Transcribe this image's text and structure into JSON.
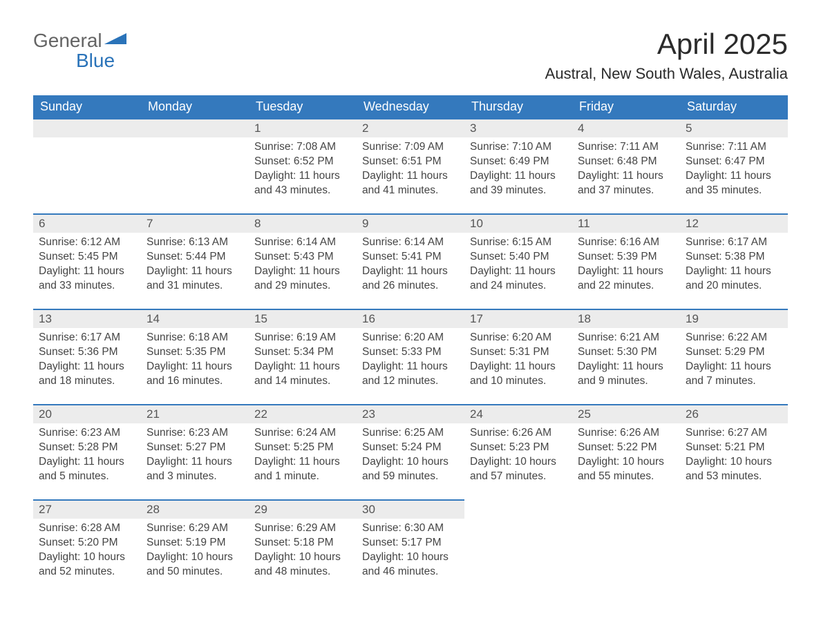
{
  "logo": {
    "line1": "General",
    "line2": "Blue",
    "accent_color": "#2a73b9",
    "text_color": "#646464"
  },
  "header": {
    "month_title": "April 2025",
    "location": "Austral, New South Wales, Australia"
  },
  "colors": {
    "header_bg": "#3479bd",
    "header_text": "#ffffff",
    "daynum_bg": "#ececec",
    "daynum_border": "#3479bd",
    "body_text": "#444444",
    "page_bg": "#ffffff"
  },
  "weekdays": [
    "Sunday",
    "Monday",
    "Tuesday",
    "Wednesday",
    "Thursday",
    "Friday",
    "Saturday"
  ],
  "weeks": [
    [
      null,
      null,
      {
        "n": "1",
        "sr": "Sunrise: 7:08 AM",
        "ss": "Sunset: 6:52 PM",
        "dl": "Daylight: 11 hours and 43 minutes."
      },
      {
        "n": "2",
        "sr": "Sunrise: 7:09 AM",
        "ss": "Sunset: 6:51 PM",
        "dl": "Daylight: 11 hours and 41 minutes."
      },
      {
        "n": "3",
        "sr": "Sunrise: 7:10 AM",
        "ss": "Sunset: 6:49 PM",
        "dl": "Daylight: 11 hours and 39 minutes."
      },
      {
        "n": "4",
        "sr": "Sunrise: 7:11 AM",
        "ss": "Sunset: 6:48 PM",
        "dl": "Daylight: 11 hours and 37 minutes."
      },
      {
        "n": "5",
        "sr": "Sunrise: 7:11 AM",
        "ss": "Sunset: 6:47 PM",
        "dl": "Daylight: 11 hours and 35 minutes."
      }
    ],
    [
      {
        "n": "6",
        "sr": "Sunrise: 6:12 AM",
        "ss": "Sunset: 5:45 PM",
        "dl": "Daylight: 11 hours and 33 minutes."
      },
      {
        "n": "7",
        "sr": "Sunrise: 6:13 AM",
        "ss": "Sunset: 5:44 PM",
        "dl": "Daylight: 11 hours and 31 minutes."
      },
      {
        "n": "8",
        "sr": "Sunrise: 6:14 AM",
        "ss": "Sunset: 5:43 PM",
        "dl": "Daylight: 11 hours and 29 minutes."
      },
      {
        "n": "9",
        "sr": "Sunrise: 6:14 AM",
        "ss": "Sunset: 5:41 PM",
        "dl": "Daylight: 11 hours and 26 minutes."
      },
      {
        "n": "10",
        "sr": "Sunrise: 6:15 AM",
        "ss": "Sunset: 5:40 PM",
        "dl": "Daylight: 11 hours and 24 minutes."
      },
      {
        "n": "11",
        "sr": "Sunrise: 6:16 AM",
        "ss": "Sunset: 5:39 PM",
        "dl": "Daylight: 11 hours and 22 minutes."
      },
      {
        "n": "12",
        "sr": "Sunrise: 6:17 AM",
        "ss": "Sunset: 5:38 PM",
        "dl": "Daylight: 11 hours and 20 minutes."
      }
    ],
    [
      {
        "n": "13",
        "sr": "Sunrise: 6:17 AM",
        "ss": "Sunset: 5:36 PM",
        "dl": "Daylight: 11 hours and 18 minutes."
      },
      {
        "n": "14",
        "sr": "Sunrise: 6:18 AM",
        "ss": "Sunset: 5:35 PM",
        "dl": "Daylight: 11 hours and 16 minutes."
      },
      {
        "n": "15",
        "sr": "Sunrise: 6:19 AM",
        "ss": "Sunset: 5:34 PM",
        "dl": "Daylight: 11 hours and 14 minutes."
      },
      {
        "n": "16",
        "sr": "Sunrise: 6:20 AM",
        "ss": "Sunset: 5:33 PM",
        "dl": "Daylight: 11 hours and 12 minutes."
      },
      {
        "n": "17",
        "sr": "Sunrise: 6:20 AM",
        "ss": "Sunset: 5:31 PM",
        "dl": "Daylight: 11 hours and 10 minutes."
      },
      {
        "n": "18",
        "sr": "Sunrise: 6:21 AM",
        "ss": "Sunset: 5:30 PM",
        "dl": "Daylight: 11 hours and 9 minutes."
      },
      {
        "n": "19",
        "sr": "Sunrise: 6:22 AM",
        "ss": "Sunset: 5:29 PM",
        "dl": "Daylight: 11 hours and 7 minutes."
      }
    ],
    [
      {
        "n": "20",
        "sr": "Sunrise: 6:23 AM",
        "ss": "Sunset: 5:28 PM",
        "dl": "Daylight: 11 hours and 5 minutes."
      },
      {
        "n": "21",
        "sr": "Sunrise: 6:23 AM",
        "ss": "Sunset: 5:27 PM",
        "dl": "Daylight: 11 hours and 3 minutes."
      },
      {
        "n": "22",
        "sr": "Sunrise: 6:24 AM",
        "ss": "Sunset: 5:25 PM",
        "dl": "Daylight: 11 hours and 1 minute."
      },
      {
        "n": "23",
        "sr": "Sunrise: 6:25 AM",
        "ss": "Sunset: 5:24 PM",
        "dl": "Daylight: 10 hours and 59 minutes."
      },
      {
        "n": "24",
        "sr": "Sunrise: 6:26 AM",
        "ss": "Sunset: 5:23 PM",
        "dl": "Daylight: 10 hours and 57 minutes."
      },
      {
        "n": "25",
        "sr": "Sunrise: 6:26 AM",
        "ss": "Sunset: 5:22 PM",
        "dl": "Daylight: 10 hours and 55 minutes."
      },
      {
        "n": "26",
        "sr": "Sunrise: 6:27 AM",
        "ss": "Sunset: 5:21 PM",
        "dl": "Daylight: 10 hours and 53 minutes."
      }
    ],
    [
      {
        "n": "27",
        "sr": "Sunrise: 6:28 AM",
        "ss": "Sunset: 5:20 PM",
        "dl": "Daylight: 10 hours and 52 minutes."
      },
      {
        "n": "28",
        "sr": "Sunrise: 6:29 AM",
        "ss": "Sunset: 5:19 PM",
        "dl": "Daylight: 10 hours and 50 minutes."
      },
      {
        "n": "29",
        "sr": "Sunrise: 6:29 AM",
        "ss": "Sunset: 5:18 PM",
        "dl": "Daylight: 10 hours and 48 minutes."
      },
      {
        "n": "30",
        "sr": "Sunrise: 6:30 AM",
        "ss": "Sunset: 5:17 PM",
        "dl": "Daylight: 10 hours and 46 minutes."
      },
      null,
      null,
      null
    ]
  ]
}
